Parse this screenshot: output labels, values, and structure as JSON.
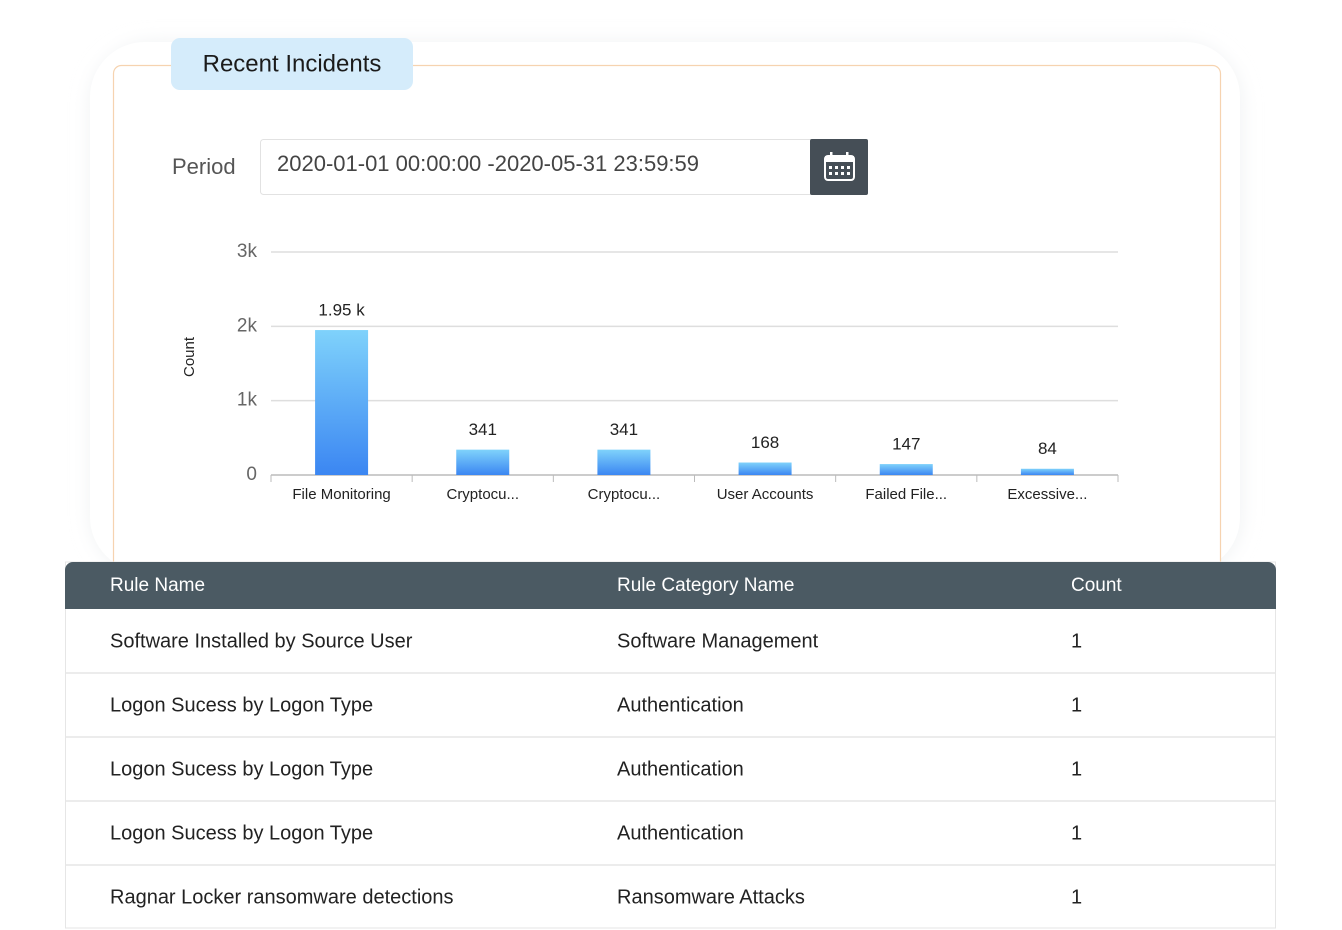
{
  "panel_title": "Recent Incidents",
  "period": {
    "label": "Period",
    "value": "2020-01-01 00:00:00 -2020-05-31 23:59:59"
  },
  "chart_data": {
    "type": "bar",
    "y_label": "Count",
    "categories": [
      "File Monitoring",
      "Cryptocu...",
      "Cryptocu...",
      "User Accounts",
      "Failed File...",
      "Excessive..."
    ],
    "values": [
      1950,
      341,
      341,
      168,
      147,
      84
    ],
    "value_labels": [
      "1.95 k",
      "341",
      "341",
      "168",
      "147",
      "84"
    ],
    "color": "#3b86f2",
    "ylim": [
      0,
      3000
    ],
    "yticks": [
      0,
      {
        "value": 1000,
        "label": "1k"
      },
      {
        "value": 2000,
        "label": "2k"
      },
      {
        "value": 3000,
        "label": "3k"
      }
    ],
    "grid": true
  },
  "table": {
    "headers": [
      "Rule Name",
      "Rule Category Name",
      "Count"
    ],
    "rows": [
      [
        "Software Installed by Source User",
        "Software Management",
        "1"
      ],
      [
        "Logon Sucess by Logon Type",
        "Authentication",
        "1"
      ],
      [
        "Logon Sucess by Logon Type",
        "Authentication",
        "1"
      ],
      [
        "Logon Sucess by Logon Type",
        "Authentication",
        "1"
      ],
      [
        "Ragnar Locker ransomware detections",
        "Ransomware Attacks",
        "1"
      ]
    ]
  }
}
